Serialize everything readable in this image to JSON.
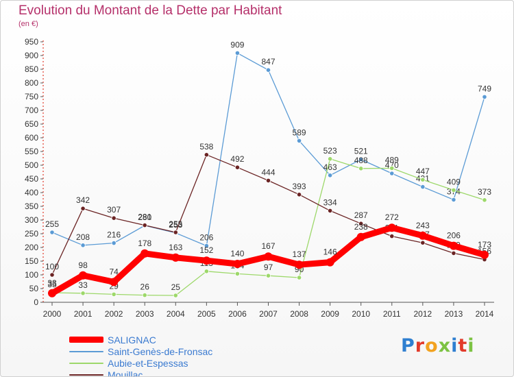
{
  "title": "Evolution du Montant de la Dette par Habitant",
  "subtitle": "(en €)",
  "logo_text": "Proxiti",
  "logo_colors": [
    "#2f7fd0",
    "#e23a2a",
    "#f2a21f",
    "#7cc242",
    "#2f7fd0",
    "#e23a2a",
    "#7cc242"
  ],
  "chart_data": {
    "type": "line",
    "title": "Evolution du Montant de la Dette par Habitant",
    "ylabel": "(en €)",
    "xlabel": "",
    "x": [
      "2000",
      "2001",
      "2002",
      "2003",
      "2004",
      "2005",
      "2006",
      "2007",
      "2008",
      "2009",
      "2010",
      "2011",
      "2012",
      "2013",
      "2014"
    ],
    "ylim": [
      0,
      950
    ],
    "yticks": [
      "0",
      "50",
      "100",
      "150",
      "200",
      "250",
      "300",
      "350",
      "400",
      "450",
      "500",
      "550",
      "600",
      "650",
      "700",
      "750",
      "800",
      "850",
      "900",
      "950"
    ],
    "grid": false,
    "legend_position": "bottom-left",
    "series": [
      {
        "name": "Saint-Genès-de-Fronsac",
        "color": "#5b9bd5",
        "values": [
          255,
          208,
          216,
          280,
          253,
          206,
          909,
          847,
          589,
          463,
          521,
          470,
          421,
          374,
          749
        ],
        "labels": [
          "255",
          "208",
          "216",
          "280",
          "253",
          "206",
          "909",
          "847",
          "589",
          "463",
          "521",
          "470",
          "421",
          "374",
          "749"
        ]
      },
      {
        "name": "Aubie-et-Espessas",
        "color": "#9dd86a",
        "values": [
          35,
          33,
          29,
          26,
          25,
          113,
          104,
          97,
          90,
          523,
          488,
          489,
          447,
          409,
          373
        ],
        "labels": [
          "35",
          "33",
          "29",
          "26",
          "25",
          "113",
          "104",
          "97",
          "90",
          "523",
          "488",
          "489",
          "447",
          "409",
          "373"
        ]
      },
      {
        "name": "Mouillac",
        "color": "#6b2424",
        "values": [
          100,
          342,
          307,
          281,
          255,
          538,
          492,
          444,
          393,
          334,
          287,
          241,
          217,
          179,
          156
        ],
        "labels": [
          "100",
          "342",
          "307",
          "281",
          "255",
          "538",
          "492",
          "444",
          "393",
          "334",
          "287",
          "241",
          "217",
          "179",
          "156"
        ]
      },
      {
        "name": "SALIGNAC",
        "color": "#ff0000",
        "values": [
          33,
          98,
          74,
          178,
          163,
          152,
          140,
          167,
          137,
          146,
          238,
          272,
          243,
          206,
          173
        ],
        "labels": [
          "33",
          "98",
          "74",
          "178",
          "163",
          "152",
          "140",
          "167",
          "137",
          "146",
          "238",
          "272",
          "243",
          "206",
          "173"
        ]
      }
    ],
    "legend": [
      "SALIGNAC",
      "Saint-Genès-de-Fronsac",
      "Aubie-et-Espessas",
      "Mouillac"
    ]
  }
}
